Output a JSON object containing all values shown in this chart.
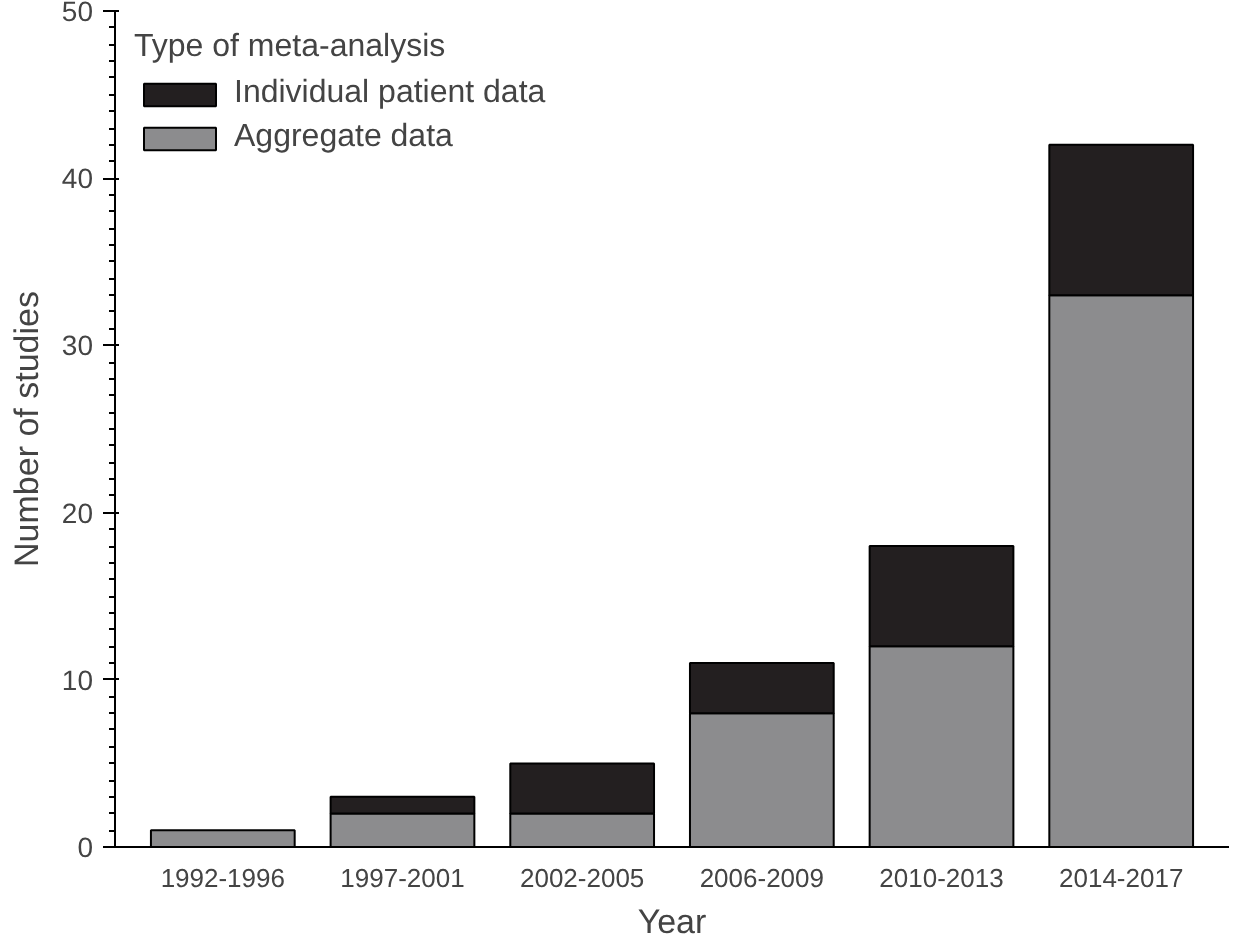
{
  "chart_data": {
    "type": "bar",
    "stacked": true,
    "xlabel": "Year",
    "ylabel": "Number of studies",
    "legend_title": "Type of meta-analysis",
    "legend": "top left",
    "categories": [
      "1992-1996",
      "1997-2001",
      "2002-2005",
      "2006-2009",
      "2010-2013",
      "2014-2017"
    ],
    "series": [
      {
        "name": "Aggregate data",
        "color": "#8c8c8e",
        "values": [
          1,
          2,
          2,
          8,
          12,
          33
        ]
      },
      {
        "name": "Individual patient data",
        "color": "#231f20",
        "values": [
          null,
          1,
          3,
          3,
          6,
          9
        ]
      }
    ],
    "ylim": [
      0,
      50
    ],
    "yticks": [
      0,
      10,
      20,
      30,
      40,
      50
    ],
    "grid": false
  }
}
